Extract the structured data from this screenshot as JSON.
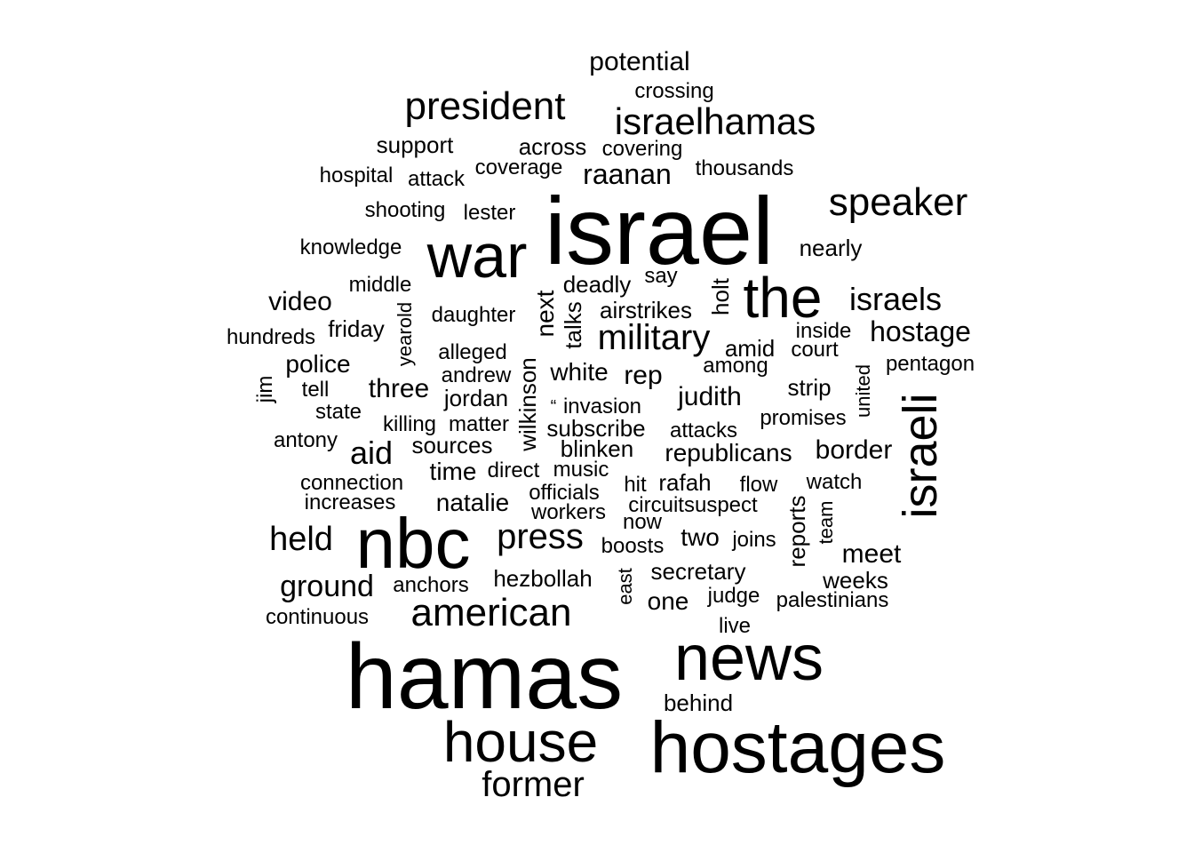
{
  "wordcloud": {
    "text_color": "#000000",
    "background_color": "#ffffff",
    "words": [
      {
        "text": "israel",
        "size": 108
      },
      {
        "text": "hamas",
        "size": 104
      },
      {
        "text": "hostages",
        "size": 82
      },
      {
        "text": "nbc",
        "size": 80
      },
      {
        "text": "news",
        "size": 72
      },
      {
        "text": "war",
        "size": 70
      },
      {
        "text": "house",
        "size": 64
      },
      {
        "text": "the",
        "size": 64
      },
      {
        "text": "israeli",
        "size": 54,
        "vertical": true
      },
      {
        "text": "american",
        "size": 44
      },
      {
        "text": "president",
        "size": 44
      },
      {
        "text": "speaker",
        "size": 44
      },
      {
        "text": "israelhamas",
        "size": 42
      },
      {
        "text": "former",
        "size": 40
      },
      {
        "text": "military",
        "size": 40
      },
      {
        "text": "press",
        "size": 40
      },
      {
        "text": "held",
        "size": 38
      },
      {
        "text": "israels",
        "size": 36
      },
      {
        "text": "aid",
        "size": 36
      },
      {
        "text": "ground",
        "size": 34
      },
      {
        "text": "hostage",
        "size": 32
      },
      {
        "text": "raanan",
        "size": 32
      },
      {
        "text": "potential",
        "size": 30
      },
      {
        "text": "video",
        "size": 30
      },
      {
        "text": "three",
        "size": 30
      },
      {
        "text": "rep",
        "size": 30
      },
      {
        "text": "border",
        "size": 30
      },
      {
        "text": "meet",
        "size": 30
      },
      {
        "text": "judith",
        "size": 30
      },
      {
        "text": "police",
        "size": 28
      },
      {
        "text": "white",
        "size": 28
      },
      {
        "text": "time",
        "size": 28
      },
      {
        "text": "natalie",
        "size": 28
      },
      {
        "text": "republicans",
        "size": 28
      },
      {
        "text": "two",
        "size": 28
      },
      {
        "text": "one",
        "size": 28
      },
      {
        "text": "next",
        "size": 28,
        "vertical": true
      },
      {
        "text": "support",
        "size": 26
      },
      {
        "text": "across",
        "size": 26
      },
      {
        "text": "friday",
        "size": 26
      },
      {
        "text": "amid",
        "size": 26
      },
      {
        "text": "jordan",
        "size": 26
      },
      {
        "text": "strip",
        "size": 26
      },
      {
        "text": "subscribe",
        "size": 26
      },
      {
        "text": "sources",
        "size": 26
      },
      {
        "text": "blinken",
        "size": 26
      },
      {
        "text": "rafah",
        "size": 26
      },
      {
        "text": "secretary",
        "size": 26
      },
      {
        "text": "hezbollah",
        "size": 26
      },
      {
        "text": "weeks",
        "size": 26
      },
      {
        "text": "nearly",
        "size": 26
      },
      {
        "text": "deadly",
        "size": 26
      },
      {
        "text": "airstrikes",
        "size": 26
      },
      {
        "text": "wilkinson",
        "size": 26,
        "vertical": true
      },
      {
        "text": "holt",
        "size": 26,
        "vertical": true
      },
      {
        "text": "talks",
        "size": 26,
        "vertical": true
      },
      {
        "text": "reports",
        "size": 26,
        "vertical": true
      },
      {
        "text": "lester",
        "size": 24
      },
      {
        "text": "crossing",
        "size": 24
      },
      {
        "text": "covering",
        "size": 24
      },
      {
        "text": "hospital",
        "size": 24
      },
      {
        "text": "attack",
        "size": 24
      },
      {
        "text": "coverage",
        "size": 24
      },
      {
        "text": "thousands",
        "size": 24
      },
      {
        "text": "shooting",
        "size": 24
      },
      {
        "text": "knowledge",
        "size": 24
      },
      {
        "text": "middle",
        "size": 24
      },
      {
        "text": "say",
        "size": 24
      },
      {
        "text": "daughter",
        "size": 24
      },
      {
        "text": "hundreds",
        "size": 24
      },
      {
        "text": "inside",
        "size": 24
      },
      {
        "text": "court",
        "size": 24
      },
      {
        "text": "alleged",
        "size": 24
      },
      {
        "text": "andrew",
        "size": 24
      },
      {
        "text": "among",
        "size": 24
      },
      {
        "text": "pentagon",
        "size": 24
      },
      {
        "text": "tell",
        "size": 24
      },
      {
        "text": "state",
        "size": 24
      },
      {
        "text": "invasion",
        "size": 24
      },
      {
        "text": "killing",
        "size": 24
      },
      {
        "text": "matter",
        "size": 24
      },
      {
        "text": "promises",
        "size": 24
      },
      {
        "text": "attacks",
        "size": 24
      },
      {
        "text": "antony",
        "size": 24
      },
      {
        "text": "direct",
        "size": 24
      },
      {
        "text": "music",
        "size": 24
      },
      {
        "text": "connection",
        "size": 24
      },
      {
        "text": "officials",
        "size": 24
      },
      {
        "text": "hit",
        "size": 24
      },
      {
        "text": "flow",
        "size": 24
      },
      {
        "text": "watch",
        "size": 24
      },
      {
        "text": "increases",
        "size": 24
      },
      {
        "text": "workers",
        "size": 24
      },
      {
        "text": "circuitsuspect",
        "size": 24
      },
      {
        "text": "now",
        "size": 24
      },
      {
        "text": "boosts",
        "size": 24
      },
      {
        "text": "joins",
        "size": 24
      },
      {
        "text": "anchors",
        "size": 24
      },
      {
        "text": "judge",
        "size": 24
      },
      {
        "text": "palestinians",
        "size": 24
      },
      {
        "text": "continuous",
        "size": 24
      },
      {
        "text": "live",
        "size": 24
      },
      {
        "text": "behind",
        "size": 26
      },
      {
        "text": "yearold",
        "size": 22,
        "vertical": true
      },
      {
        "text": "jim",
        "size": 24,
        "vertical": true
      },
      {
        "text": "united",
        "size": 22,
        "vertical": true
      },
      {
        "text": "team",
        "size": 22,
        "vertical": true
      },
      {
        "text": "east",
        "size": 22,
        "vertical": true
      },
      {
        "text": "“",
        "size": 20
      }
    ]
  }
}
